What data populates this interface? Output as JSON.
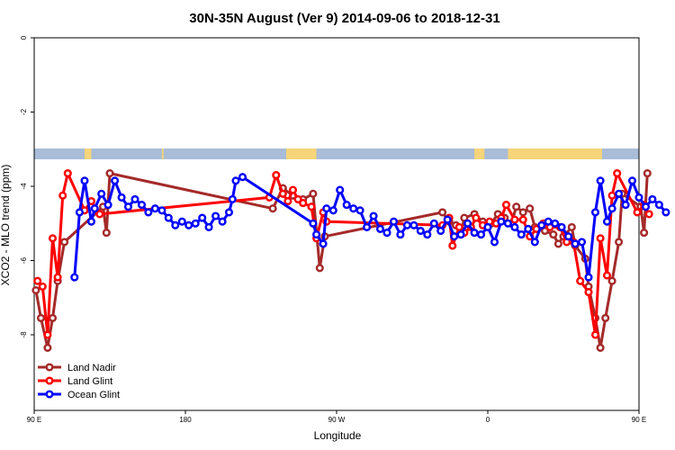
{
  "chart_data": {
    "type": "line",
    "title": "30N-35N August (Ver 9)   2014-09-06 to 2018-12-31",
    "xlabel": "Longitude",
    "ylabel": "XCO2 - MLO trend (ppm)",
    "xlim": [
      90,
      450
    ],
    "ylim": [
      -10,
      0
    ],
    "x_ticks": [
      {
        "value": 90,
        "label": "90 E"
      },
      {
        "value": 180,
        "label": "180"
      },
      {
        "value": 270,
        "label": "90 W"
      },
      {
        "value": 360,
        "label": "0"
      },
      {
        "value": 450,
        "label": "90 E"
      },
      {
        "value": 540,
        "label": "180"
      }
    ],
    "y_ticks": [
      {
        "value": 0,
        "label": "0"
      },
      {
        "value": -2,
        "label": "-2"
      },
      {
        "value": -4,
        "label": "-4"
      },
      {
        "value": -6,
        "label": "-6"
      },
      {
        "value": -8,
        "label": "-8"
      }
    ],
    "legend_position": "bottom-left",
    "land_ocean_strip": {
      "ocean_color": "#a9bcd8",
      "land_color": "#f5d47a",
      "land_segments": [
        [
          120,
          124
        ],
        [
          166,
          167
        ],
        [
          240,
          258
        ],
        [
          352,
          358
        ],
        [
          372,
          428
        ],
        [
          478,
          486
        ],
        [
          420,
          426
        ]
      ]
    },
    "series": [
      {
        "name": "Land Nadir",
        "color": "#a52a2a",
        "points": [
          [
            91,
            -6.8
          ],
          [
            94,
            -7.55
          ],
          [
            98,
            -8.35
          ],
          [
            101,
            -7.55
          ],
          [
            104,
            -6.55
          ],
          [
            108,
            -5.5
          ],
          [
            131,
            -4.55
          ],
          [
            133,
            -5.25
          ],
          [
            135,
            -3.65
          ],
          [
            232,
            -4.6
          ],
          [
            238,
            -4.05
          ],
          [
            244,
            -4.25
          ],
          [
            250,
            -4.35
          ],
          [
            256,
            -4.2
          ],
          [
            260,
            -6.2
          ],
          [
            263,
            -5.35
          ],
          [
            333,
            -4.7
          ],
          [
            337,
            -4.95
          ],
          [
            341,
            -5.05
          ],
          [
            344,
            -5.3
          ],
          [
            346,
            -4.85
          ],
          [
            352,
            -4.75
          ],
          [
            357,
            -4.95
          ],
          [
            362,
            -5.0
          ],
          [
            366,
            -4.75
          ],
          [
            370,
            -4.85
          ],
          [
            374,
            -5.0
          ],
          [
            377,
            -4.55
          ],
          [
            381,
            -4.7
          ],
          [
            385,
            -4.6
          ],
          [
            388,
            -5.1
          ],
          [
            394,
            -5.2
          ],
          [
            399,
            -5.3
          ],
          [
            402,
            -5.55
          ],
          [
            405,
            -5.35
          ],
          [
            410,
            -5.1
          ],
          [
            412,
            -5.6
          ],
          [
            418,
            -5.95
          ],
          [
            420,
            -6.7
          ],
          [
            424,
            -7.55
          ],
          [
            427,
            -8.35
          ],
          [
            430,
            -7.55
          ],
          [
            434,
            -6.55
          ],
          [
            438,
            -5.5
          ],
          [
            440,
            -4.2
          ],
          [
            451,
            -4.55
          ],
          [
            453,
            -5.25
          ],
          [
            455,
            -3.65
          ]
        ]
      },
      {
        "name": "Land Glint",
        "color": "#ff0000",
        "points": [
          [
            92,
            -6.55
          ],
          [
            95,
            -6.7
          ],
          [
            98,
            -8.0
          ],
          [
            101,
            -5.4
          ],
          [
            104,
            -6.45
          ],
          [
            107,
            -4.25
          ],
          [
            110,
            -3.65
          ],
          [
            120,
            -4.65
          ],
          [
            124,
            -4.4
          ],
          [
            129,
            -4.75
          ],
          [
            230,
            -4.3
          ],
          [
            234,
            -3.7
          ],
          [
            238,
            -4.2
          ],
          [
            241,
            -4.4
          ],
          [
            244,
            -4.1
          ],
          [
            247,
            -4.35
          ],
          [
            250,
            -4.45
          ],
          [
            255,
            -4.55
          ],
          [
            258,
            -5.4
          ],
          [
            262,
            -4.7
          ],
          [
            264,
            -4.95
          ],
          [
            333,
            -5.05
          ],
          [
            337,
            -4.85
          ],
          [
            339,
            -5.6
          ],
          [
            343,
            -5.1
          ],
          [
            346,
            -5.25
          ],
          [
            350,
            -5.1
          ],
          [
            353,
            -4.85
          ],
          [
            357,
            -5.05
          ],
          [
            361,
            -4.95
          ],
          [
            365,
            -5.0
          ],
          [
            368,
            -4.85
          ],
          [
            371,
            -4.5
          ],
          [
            376,
            -4.9
          ],
          [
            381,
            -4.9
          ],
          [
            385,
            -5.35
          ],
          [
            389,
            -5.15
          ],
          [
            393,
            -5.0
          ],
          [
            397,
            -5.1
          ],
          [
            403,
            -5.1
          ],
          [
            407,
            -5.5
          ],
          [
            411,
            -5.5
          ],
          [
            415,
            -6.55
          ],
          [
            420,
            -6.85
          ],
          [
            424,
            -8.0
          ],
          [
            427,
            -5.4
          ],
          [
            431,
            -6.4
          ],
          [
            434,
            -4.25
          ],
          [
            437,
            -3.65
          ],
          [
            449,
            -4.7
          ],
          [
            453,
            -4.5
          ],
          [
            456,
            -4.75
          ]
        ]
      },
      {
        "name": "Ocean Glint",
        "color": "#0000ff",
        "points": [
          [
            114,
            -6.45
          ],
          [
            117,
            -4.7
          ],
          [
            120,
            -3.85
          ],
          [
            124,
            -4.95
          ],
          [
            126,
            -4.6
          ],
          [
            130,
            -4.2
          ],
          [
            134,
            -4.5
          ],
          [
            138,
            -3.85
          ],
          [
            142,
            -4.3
          ],
          [
            146,
            -4.55
          ],
          [
            150,
            -4.35
          ],
          [
            154,
            -4.5
          ],
          [
            158,
            -4.7
          ],
          [
            162,
            -4.6
          ],
          [
            166,
            -4.65
          ],
          [
            170,
            -4.85
          ],
          [
            174,
            -5.05
          ],
          [
            178,
            -4.95
          ],
          [
            182,
            -5.05
          ],
          [
            186,
            -5.0
          ],
          [
            190,
            -4.85
          ],
          [
            194,
            -5.1
          ],
          [
            198,
            -4.8
          ],
          [
            202,
            -4.95
          ],
          [
            206,
            -4.7
          ],
          [
            208,
            -4.35
          ],
          [
            210,
            -3.85
          ],
          [
            214,
            -3.75
          ],
          [
            256,
            -5.0
          ],
          [
            258,
            -5.3
          ],
          [
            262,
            -5.55
          ],
          [
            264,
            -4.6
          ],
          [
            268,
            -4.65
          ],
          [
            272,
            -4.1
          ],
          [
            276,
            -4.5
          ],
          [
            280,
            -4.6
          ],
          [
            284,
            -4.65
          ],
          [
            288,
            -5.1
          ],
          [
            292,
            -4.8
          ],
          [
            296,
            -5.15
          ],
          [
            300,
            -5.25
          ],
          [
            304,
            -4.95
          ],
          [
            308,
            -5.3
          ],
          [
            312,
            -5.05
          ],
          [
            316,
            -5.05
          ],
          [
            320,
            -5.2
          ],
          [
            324,
            -5.3
          ],
          [
            328,
            -5.0
          ],
          [
            332,
            -5.2
          ],
          [
            336,
            -4.9
          ],
          [
            340,
            -5.35
          ],
          [
            344,
            -5.3
          ],
          [
            348,
            -5.0
          ],
          [
            352,
            -5.25
          ],
          [
            356,
            -5.3
          ],
          [
            360,
            -5.1
          ],
          [
            364,
            -5.5
          ],
          [
            368,
            -4.95
          ],
          [
            372,
            -5.0
          ],
          [
            376,
            -5.1
          ],
          [
            380,
            -5.3
          ],
          [
            384,
            -5.15
          ],
          [
            388,
            -5.5
          ],
          [
            392,
            -5.05
          ],
          [
            396,
            -4.95
          ],
          [
            400,
            -5.0
          ],
          [
            404,
            -5.1
          ],
          [
            408,
            -5.35
          ],
          [
            412,
            -5.55
          ],
          [
            416,
            -5.5
          ],
          [
            420,
            -6.45
          ],
          [
            424,
            -4.7
          ],
          [
            427,
            -3.85
          ],
          [
            431,
            -4.95
          ],
          [
            434,
            -4.6
          ],
          [
            438,
            -4.2
          ],
          [
            442,
            -4.5
          ],
          [
            446,
            -3.85
          ],
          [
            450,
            -4.3
          ],
          [
            454,
            -4.55
          ],
          [
            458,
            -4.35
          ],
          [
            462,
            -4.5
          ],
          [
            466,
            -4.7
          ]
        ]
      }
    ]
  }
}
